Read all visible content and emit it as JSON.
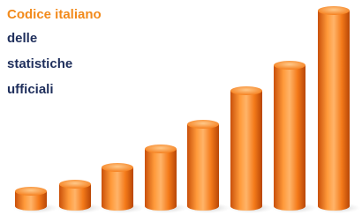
{
  "heading": {
    "lines": [
      "Codice italiano",
      "delle",
      "statistiche",
      "ufficiali"
    ]
  }
}
